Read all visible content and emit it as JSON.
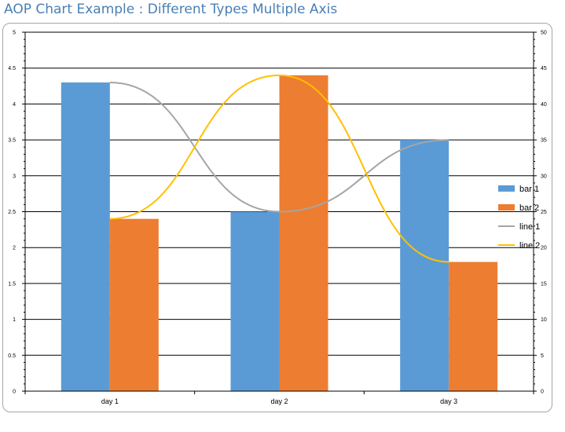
{
  "page": {
    "title": "AOP Chart Example : Different Types Multiple Axis"
  },
  "chart_data": {
    "type": "bar",
    "categories": [
      "day 1",
      "day 2",
      "day 3"
    ],
    "series": [
      {
        "name": "bar 1",
        "kind": "bar",
        "axis": "left",
        "color": "#5b9bd5",
        "values": [
          4.3,
          2.5,
          3.5
        ]
      },
      {
        "name": "bar 2",
        "kind": "bar",
        "axis": "left",
        "color": "#ed7d31",
        "values": [
          2.4,
          4.4,
          1.8
        ]
      },
      {
        "name": "line 1",
        "kind": "line",
        "axis": "right",
        "smooth": true,
        "color": "#a5a5a5",
        "values": [
          43,
          25,
          35
        ]
      },
      {
        "name": "line 2",
        "kind": "line",
        "axis": "right",
        "smooth": true,
        "color": "#ffc000",
        "values": [
          24,
          44,
          18
        ]
      }
    ],
    "y_left": {
      "min": 0,
      "max": 5,
      "ticks": [
        "0",
        "0.5",
        "1",
        "1.5",
        "2",
        "2.5",
        "3",
        "3.5",
        "4",
        "4.5",
        "5"
      ]
    },
    "y_right": {
      "min": 0,
      "max": 50,
      "ticks": [
        "0",
        "5",
        "10",
        "15",
        "20",
        "25",
        "30",
        "35",
        "40",
        "45",
        "50"
      ]
    },
    "grid": true,
    "legend": "right",
    "title": "",
    "xlabel": "",
    "ylabel": ""
  }
}
